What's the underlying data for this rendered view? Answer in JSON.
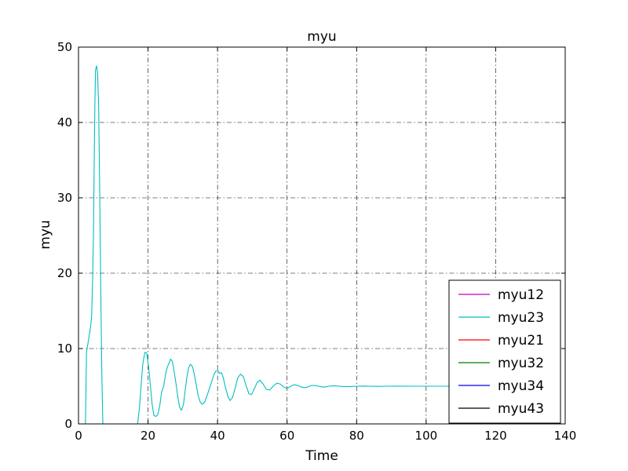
{
  "chart_data": {
    "type": "line",
    "title": "myu",
    "xlabel": "Time",
    "ylabel": "myu",
    "xlim": [
      0,
      140
    ],
    "ylim": [
      0,
      50
    ],
    "xticks": [
      0,
      20,
      40,
      60,
      80,
      100,
      120,
      140
    ],
    "yticks": [
      0,
      10,
      20,
      30,
      40,
      50
    ],
    "xtick_labels": [
      "0",
      "20",
      "40",
      "60",
      "80",
      "100",
      "120",
      "140"
    ],
    "ytick_labels": [
      "0",
      "10",
      "20",
      "30",
      "40",
      "50"
    ],
    "grid": true,
    "grid_style": "dash-dot",
    "legend_position": "lower-right",
    "series": [
      {
        "name": "myu12",
        "color": "#bf00bf",
        "points": [
          [
            0,
            0
          ],
          [
            122,
            0
          ]
        ]
      },
      {
        "name": "myu23",
        "color": "#00bfbf",
        "points": [
          [
            0,
            0
          ],
          [
            2,
            0
          ],
          [
            2.3,
            9.5
          ],
          [
            3,
            11.5
          ],
          [
            3.5,
            13
          ],
          [
            3.8,
            14.5
          ],
          [
            4,
            18
          ],
          [
            4.3,
            25
          ],
          [
            4.5,
            34
          ],
          [
            4.7,
            42
          ],
          [
            4.9,
            47
          ],
          [
            5.2,
            47.5
          ],
          [
            5.5,
            46.5
          ],
          [
            5.8,
            42
          ],
          [
            6.1,
            31
          ],
          [
            6.4,
            18
          ],
          [
            6.7,
            7
          ],
          [
            7,
            0
          ],
          [
            17,
            0
          ],
          [
            17.5,
            2
          ],
          [
            18,
            5
          ],
          [
            18.5,
            8
          ],
          [
            19.1,
            9.5
          ],
          [
            19.6,
            9.4
          ],
          [
            20.2,
            7.5
          ],
          [
            20.7,
            5
          ],
          [
            21.2,
            2.5
          ],
          [
            21.7,
            1.1
          ],
          [
            22.3,
            1
          ],
          [
            22.8,
            1.2
          ],
          [
            23.4,
            2.5
          ],
          [
            23.9,
            4.2
          ],
          [
            24.5,
            5
          ],
          [
            25,
            6.5
          ],
          [
            25.5,
            7.5
          ],
          [
            26,
            8
          ],
          [
            26.5,
            8.6
          ],
          [
            27,
            8.3
          ],
          [
            27.5,
            7
          ],
          [
            28,
            5.5
          ],
          [
            28.6,
            3.5
          ],
          [
            29.1,
            2.2
          ],
          [
            29.6,
            1.8
          ],
          [
            30.2,
            2.6
          ],
          [
            30.7,
            4.5
          ],
          [
            31.2,
            6.3
          ],
          [
            31.7,
            7.5
          ],
          [
            32.2,
            7.9
          ],
          [
            32.8,
            7.6
          ],
          [
            33.3,
            6.6
          ],
          [
            33.9,
            5.1
          ],
          [
            34.4,
            3.8
          ],
          [
            35,
            2.9
          ],
          [
            35.6,
            2.6
          ],
          [
            36.3,
            2.9
          ],
          [
            37,
            3.8
          ],
          [
            37.6,
            4.6
          ],
          [
            38.3,
            5.6
          ],
          [
            38.9,
            6.5
          ],
          [
            39.5,
            7
          ],
          [
            40.1,
            7.1
          ],
          [
            40.6,
            6.7
          ],
          [
            41.1,
            6.8
          ],
          [
            41.6,
            6.2
          ],
          [
            42.3,
            4.8
          ],
          [
            43,
            3.6
          ],
          [
            43.6,
            3.1
          ],
          [
            44.3,
            3.5
          ],
          [
            45.1,
            4.8
          ],
          [
            45.8,
            6.1
          ],
          [
            46.6,
            6.6
          ],
          [
            47.4,
            6.3
          ],
          [
            48.2,
            5.1
          ],
          [
            49,
            4
          ],
          [
            49.8,
            3.9
          ],
          [
            50.6,
            4.7
          ],
          [
            51.4,
            5.5
          ],
          [
            52.2,
            5.8
          ],
          [
            53.1,
            5.3
          ],
          [
            54,
            4.6
          ],
          [
            55,
            4.5
          ],
          [
            56,
            5
          ],
          [
            57,
            5.4
          ],
          [
            58,
            5.3
          ],
          [
            59,
            4.9
          ],
          [
            60,
            4.7
          ],
          [
            61,
            5
          ],
          [
            62,
            5.2
          ],
          [
            63,
            5.1
          ],
          [
            64,
            4.9
          ],
          [
            65,
            4.8
          ],
          [
            66,
            4.9
          ],
          [
            67,
            5.1
          ],
          [
            68,
            5.1
          ],
          [
            69,
            5
          ],
          [
            70,
            4.9
          ],
          [
            71,
            4.9
          ],
          [
            72,
            5
          ],
          [
            73,
            5.05
          ],
          [
            74,
            5.05
          ],
          [
            75,
            5
          ],
          [
            76,
            4.95
          ],
          [
            78,
            4.95
          ],
          [
            80,
            5
          ],
          [
            82,
            5.02
          ],
          [
            84,
            5
          ],
          [
            86,
            4.98
          ],
          [
            88,
            5
          ],
          [
            92,
            5.01
          ],
          [
            96,
            5
          ],
          [
            100,
            5
          ],
          [
            110,
            5
          ],
          [
            122,
            5
          ]
        ]
      },
      {
        "name": "myu21",
        "color": "#ff0000",
        "points": [
          [
            0,
            0
          ],
          [
            122,
            0
          ]
        ]
      },
      {
        "name": "myu32",
        "color": "#008000",
        "points": [
          [
            0,
            0
          ],
          [
            122,
            0
          ]
        ]
      },
      {
        "name": "myu34",
        "color": "#0000ff",
        "points": [
          [
            0,
            0
          ],
          [
            122,
            0
          ]
        ]
      },
      {
        "name": "myu43",
        "color": "#000000",
        "points": [
          [
            0,
            0
          ],
          [
            122,
            0
          ]
        ]
      }
    ]
  }
}
